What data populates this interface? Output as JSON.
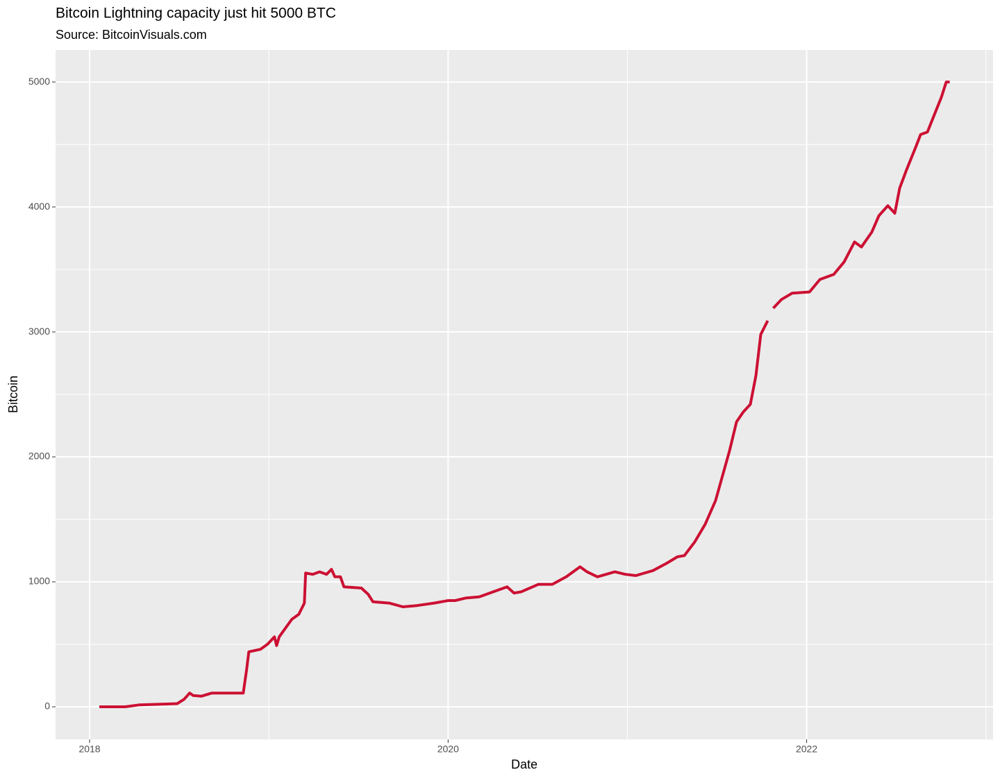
{
  "chart_data": {
    "type": "line",
    "title": "Bitcoin Lightning capacity just hit 5000 BTC",
    "subtitle": "Source: BitcoinVisuals.com",
    "x_label": "Date",
    "y_label": "Bitcoin",
    "x": [
      2018.054,
      2018.198,
      2018.275,
      2018.488,
      2018.527,
      2018.558,
      2018.578,
      2018.624,
      2018.682,
      2018.857,
      2018.876,
      2018.888,
      2018.953,
      2018.992,
      2019.031,
      2019.043,
      2019.058,
      2019.128,
      2019.167,
      2019.198,
      2019.205,
      2019.244,
      2019.283,
      2019.322,
      2019.349,
      2019.368,
      2019.399,
      2019.419,
      2019.516,
      2019.554,
      2019.581,
      2019.671,
      2019.748,
      2019.826,
      2019.922,
      2020.0,
      2020.039,
      2020.097,
      2020.174,
      2020.252,
      2020.329,
      2020.368,
      2020.407,
      2020.504,
      2020.581,
      2020.659,
      2020.736,
      2020.775,
      2020.833,
      2020.93,
      2020.988,
      2021.047,
      2021.143,
      2021.221,
      2021.279,
      2021.318,
      2021.376,
      2021.434,
      2021.492,
      2021.531,
      2021.57,
      2021.609,
      2021.647,
      2021.686,
      2021.717,
      2021.744,
      2021.783,
      2021.798,
      2021.814,
      2021.86,
      2021.919,
      2022.016,
      2022.074,
      2022.151,
      2022.209,
      2022.267,
      2022.306,
      2022.364,
      2022.403,
      2022.453,
      2022.492,
      2022.519,
      2022.558,
      2022.609,
      2022.636,
      2022.674,
      2022.713,
      2022.752,
      2022.779,
      2022.798
    ],
    "series": [
      {
        "name": "Bitcoin",
        "color": "#cc1033",
        "values": [
          0,
          0,
          15,
          25,
          60,
          110,
          90,
          85,
          110,
          110,
          300,
          440,
          460,
          500,
          560,
          490,
          560,
          700,
          740,
          830,
          1070,
          1060,
          1080,
          1060,
          1100,
          1040,
          1040,
          960,
          950,
          900,
          840,
          830,
          800,
          810,
          830,
          850,
          850,
          870,
          880,
          920,
          960,
          910,
          920,
          980,
          980,
          1040,
          1120,
          1080,
          1040,
          1080,
          1060,
          1050,
          1090,
          1150,
          1200,
          1210,
          1320,
          1460,
          1650,
          1850,
          2050,
          2280,
          2360,
          2420,
          2650,
          2980,
          3090,
          null,
          3190,
          3260,
          3310,
          3320,
          3420,
          3460,
          3560,
          3720,
          3680,
          3800,
          3930,
          4010,
          3950,
          4150,
          4300,
          4480,
          4580,
          4600,
          4740,
          4880,
          5000,
          5000
        ]
      }
    ],
    "xlim": [
      2017.81,
      2023.04
    ],
    "xticks": [
      2018,
      2020,
      2022
    ],
    "xminor": [
      2019,
      2021,
      2023
    ],
    "ylim": [
      -261,
      5256
    ],
    "yticks": [
      0,
      1000,
      2000,
      3000,
      4000,
      5000
    ],
    "yminor": [
      500,
      1500,
      2500,
      3500,
      4500
    ],
    "grid": true
  }
}
